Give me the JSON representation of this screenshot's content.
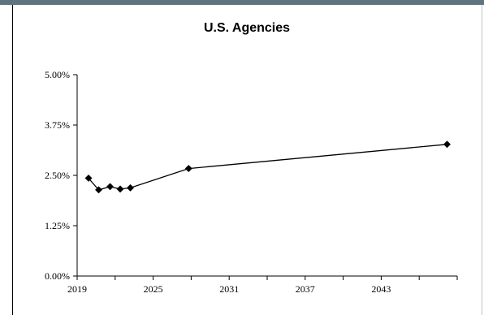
{
  "chart_data": {
    "type": "line",
    "title": "U.S. Agencies",
    "xlabel": "",
    "ylabel": "",
    "xlim": [
      2019,
      2049
    ],
    "ylim": [
      0,
      5
    ],
    "x_ticks": [
      2019,
      2025,
      2031,
      2037,
      2043
    ],
    "x_tick_labels": [
      "2019",
      "2025",
      "2031",
      "2037",
      "2043"
    ],
    "y_ticks": [
      0,
      1.25,
      2.5,
      3.75,
      5
    ],
    "y_tick_labels": [
      "0.00%",
      "1.25%",
      "2.50%",
      "3.75%",
      "5.00%"
    ],
    "grid": false,
    "legend": "none",
    "series": [
      {
        "x": [
          2019.9,
          2020.7,
          2021.6,
          2022.4,
          2023.2,
          2027.8,
          2048.2
        ],
        "y": [
          2.43,
          2.14,
          2.22,
          2.16,
          2.19,
          2.67,
          3.27
        ],
        "color": "#000000",
        "marker": "diamond"
      }
    ]
  }
}
